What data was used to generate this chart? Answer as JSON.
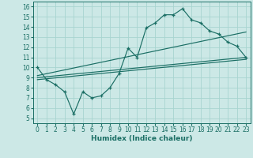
{
  "xlabel": "Humidex (Indice chaleur)",
  "bg_color": "#cce8e6",
  "line_color": "#1a6e64",
  "grid_color": "#a8d4d0",
  "xlim": [
    -0.5,
    23.5
  ],
  "ylim": [
    4.5,
    16.5
  ],
  "xticks": [
    0,
    1,
    2,
    3,
    4,
    5,
    6,
    7,
    8,
    9,
    10,
    11,
    12,
    13,
    14,
    15,
    16,
    17,
    18,
    19,
    20,
    21,
    22,
    23
  ],
  "yticks": [
    5,
    6,
    7,
    8,
    9,
    10,
    11,
    12,
    13,
    14,
    15,
    16
  ],
  "main_x": [
    0,
    1,
    2,
    3,
    4,
    5,
    6,
    7,
    8,
    9,
    10,
    11,
    12,
    13,
    14,
    15,
    16,
    17,
    18,
    19,
    20,
    21,
    22,
    23
  ],
  "main_y": [
    10.0,
    8.8,
    8.3,
    7.6,
    5.4,
    7.6,
    7.0,
    7.2,
    8.0,
    9.4,
    11.9,
    11.0,
    13.9,
    14.4,
    15.2,
    15.2,
    15.8,
    14.7,
    14.4,
    13.6,
    13.3,
    12.5,
    12.1,
    11.0
  ],
  "line1_x": [
    0,
    23
  ],
  "line1_y": [
    9.0,
    11.0
  ],
  "line2_x": [
    0,
    23
  ],
  "line2_y": [
    9.2,
    13.5
  ],
  "line3_x": [
    0,
    23
  ],
  "line3_y": [
    8.8,
    10.8
  ],
  "tick_fontsize": 5.5,
  "xlabel_fontsize": 6.5
}
